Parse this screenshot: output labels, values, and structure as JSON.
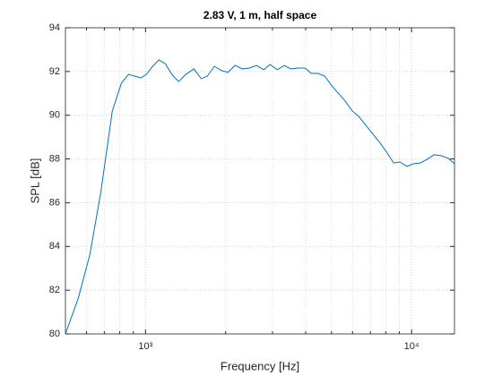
{
  "chart_data": {
    "type": "line",
    "title": "2.83 V, 1 m, half space",
    "xlabel": "Frequency [Hz]",
    "ylabel": "SPL [dB]",
    "x_scale": "log",
    "grid": true,
    "minor_grid": true,
    "xlim": [
      500,
      14500
    ],
    "ylim": [
      80,
      94
    ],
    "xticks": [
      {
        "value": 1000,
        "label": "10³"
      },
      {
        "value": 10000,
        "label": "10⁴"
      }
    ],
    "yticks": [
      80,
      82,
      84,
      86,
      88,
      90,
      92,
      94
    ],
    "series": [
      {
        "color": "#0072bd",
        "x": [
          500,
          559,
          618,
          679,
          750,
          811,
          863,
          911,
          962,
          1008,
          1064,
          1123,
          1186,
          1262,
          1332,
          1418,
          1520,
          1618,
          1708,
          1816,
          1933,
          2041,
          2171,
          2310,
          2458,
          2615,
          2783,
          2938,
          3126,
          3325,
          3512,
          3736,
          3974,
          4198,
          4466,
          4714,
          5015,
          5338,
          5634,
          5995,
          6328,
          6734,
          7165,
          7625,
          8051,
          8566,
          9042,
          9621,
          10155,
          10806,
          11497,
          12139,
          12915,
          13740,
          14500
        ],
        "values": [
          80.0,
          81.64,
          83.64,
          86.47,
          90.19,
          91.46,
          91.87,
          91.79,
          91.71,
          91.87,
          92.24,
          92.53,
          92.36,
          91.83,
          91.54,
          91.87,
          92.12,
          91.67,
          91.79,
          92.24,
          92.04,
          91.96,
          92.28,
          92.12,
          92.16,
          92.28,
          92.08,
          92.32,
          92.08,
          92.28,
          92.12,
          92.16,
          92.16,
          91.91,
          91.91,
          91.79,
          91.34,
          90.97,
          90.64,
          90.19,
          89.95,
          89.54,
          89.13,
          88.72,
          88.32,
          87.82,
          87.86,
          87.66,
          87.78,
          87.82,
          88.0,
          88.19,
          88.15,
          88.03,
          87.78
        ]
      }
    ]
  }
}
